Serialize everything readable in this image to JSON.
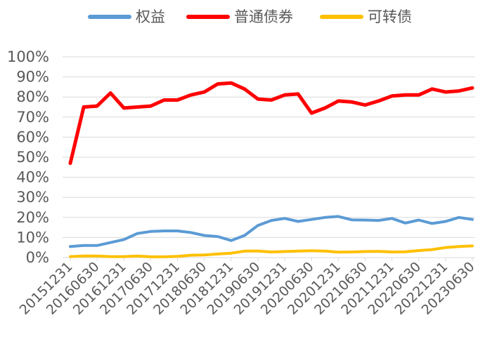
{
  "chart_data": {
    "type": "line",
    "title": "",
    "xlabel": "",
    "ylabel": "",
    "ylim": [
      0,
      1
    ],
    "y_ticks": [
      "0%",
      "10%",
      "20%",
      "30%",
      "40%",
      "50%",
      "60%",
      "70%",
      "80%",
      "90%",
      "100%"
    ],
    "grid": true,
    "legend_position": "top",
    "x": [
      "20151231",
      "20160331",
      "20160630",
      "20160930",
      "20161231",
      "20170331",
      "20170630",
      "20170930",
      "20171231",
      "20180331",
      "20180630",
      "20180930",
      "20181231",
      "20190331",
      "20190630",
      "20190930",
      "20191231",
      "20200331",
      "20200630",
      "20200930",
      "20201231",
      "20210331",
      "20210630",
      "20210930",
      "20211231",
      "20220331",
      "20220630",
      "20220930",
      "20221231",
      "20230331",
      "20230630"
    ],
    "x_tick_labels": [
      "20151231",
      "20160630",
      "20161231",
      "20170630",
      "20171231",
      "20180630",
      "20181231",
      "20190630",
      "20191231",
      "20200630",
      "20201231",
      "20210630",
      "20211231",
      "20220630",
      "20221231",
      "20230630"
    ],
    "series": [
      {
        "name": "权益",
        "color": "#5b9bd5",
        "values": [
          0.055,
          0.06,
          0.06,
          0.075,
          0.09,
          0.12,
          0.13,
          0.133,
          0.133,
          0.125,
          0.11,
          0.105,
          0.085,
          0.11,
          0.16,
          0.185,
          0.195,
          0.18,
          0.19,
          0.2,
          0.205,
          0.188,
          0.187,
          0.185,
          0.195,
          0.172,
          0.187,
          0.17,
          0.18,
          0.2,
          0.19
        ]
      },
      {
        "name": "普通债券",
        "color": "#ff0000",
        "values": [
          0.47,
          0.75,
          0.755,
          0.82,
          0.745,
          0.75,
          0.755,
          0.785,
          0.785,
          0.81,
          0.825,
          0.865,
          0.87,
          0.84,
          0.79,
          0.785,
          0.81,
          0.815,
          0.72,
          0.745,
          0.78,
          0.775,
          0.76,
          0.78,
          0.805,
          0.81,
          0.81,
          0.84,
          0.825,
          0.83,
          0.845
        ]
      },
      {
        "name": "可转债",
        "color": "#ffc000",
        "values": [
          0.005,
          0.008,
          0.008,
          0.005,
          0.005,
          0.008,
          0.004,
          0.004,
          0.006,
          0.012,
          0.013,
          0.018,
          0.022,
          0.032,
          0.033,
          0.028,
          0.03,
          0.032,
          0.034,
          0.032,
          0.027,
          0.028,
          0.03,
          0.031,
          0.028,
          0.029,
          0.035,
          0.04,
          0.05,
          0.055,
          0.058
        ]
      }
    ]
  }
}
